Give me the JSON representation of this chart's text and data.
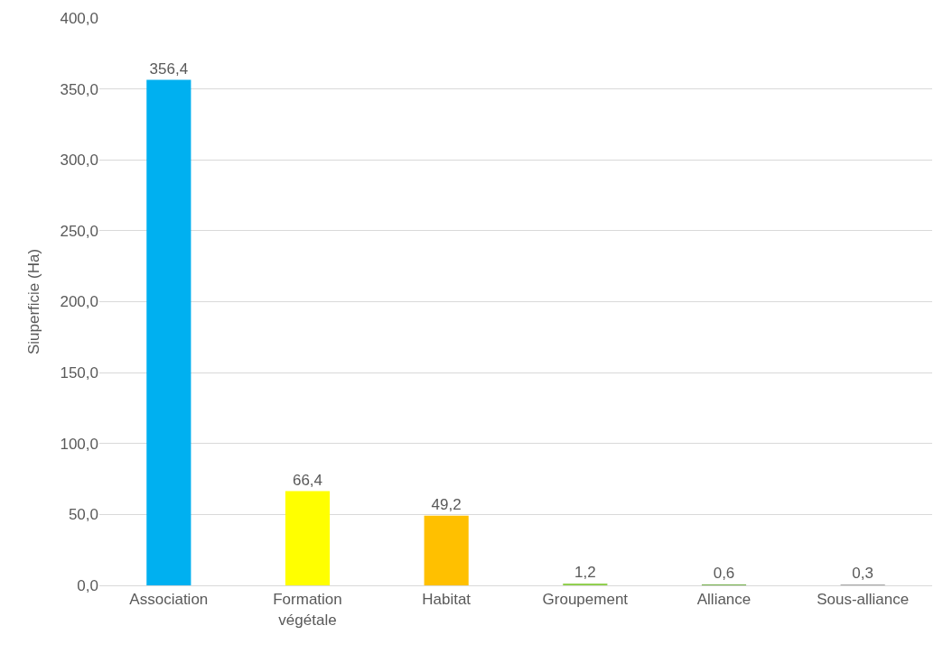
{
  "chart_data": {
    "type": "bar",
    "ylabel": "Siuperficie (Ha)",
    "categories": [
      "Association",
      "Formation végétale",
      "Habitat",
      "Groupement",
      "Alliance",
      "Sous-alliance"
    ],
    "values": [
      356.4,
      66.4,
      49.2,
      1.2,
      0.6,
      0.3
    ],
    "colors": [
      "#00b0f0",
      "#ffff00",
      "#ffc000",
      "#92d050",
      "#70ad47",
      "#a5a5a5"
    ],
    "value_labels": [
      "356,4",
      "66,4",
      "49,2",
      "1,2",
      "0,6",
      "0,3"
    ],
    "ylim": [
      0,
      400
    ],
    "yticks": [
      {
        "value": 0,
        "label": "0,0"
      },
      {
        "value": 50,
        "label": "50,0"
      },
      {
        "value": 100,
        "label": "100,0"
      },
      {
        "value": 150,
        "label": "150,0"
      },
      {
        "value": 200,
        "label": "200,0"
      },
      {
        "value": 250,
        "label": "250,0"
      },
      {
        "value": 300,
        "label": "300,0"
      },
      {
        "value": 350,
        "label": "350,0"
      },
      {
        "value": 400,
        "label": "400,0"
      }
    ],
    "grid": "y"
  }
}
